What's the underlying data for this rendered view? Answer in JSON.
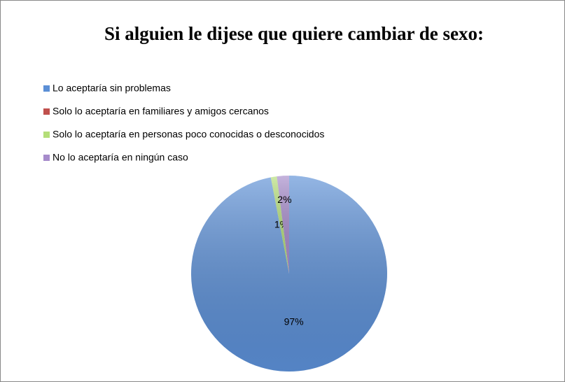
{
  "chart_data": {
    "type": "pie",
    "title": "Si alguien le dijese que quiere cambiar de sexo:",
    "categories": [
      "Lo aceptaría sin problemas",
      "Solo lo aceptaría en familiares y amigos cercanos",
      "Solo lo aceptaría en personas poco conocidas o desconocidos",
      "No lo aceptaría en ningún caso"
    ],
    "values": [
      97,
      0,
      1,
      2
    ],
    "value_labels": [
      "97%",
      null,
      "1%",
      "2%"
    ],
    "colors": [
      "#5b8fd6",
      "#c0504d",
      "#b4de78",
      "#a68bcb"
    ],
    "legend": "top-left"
  }
}
